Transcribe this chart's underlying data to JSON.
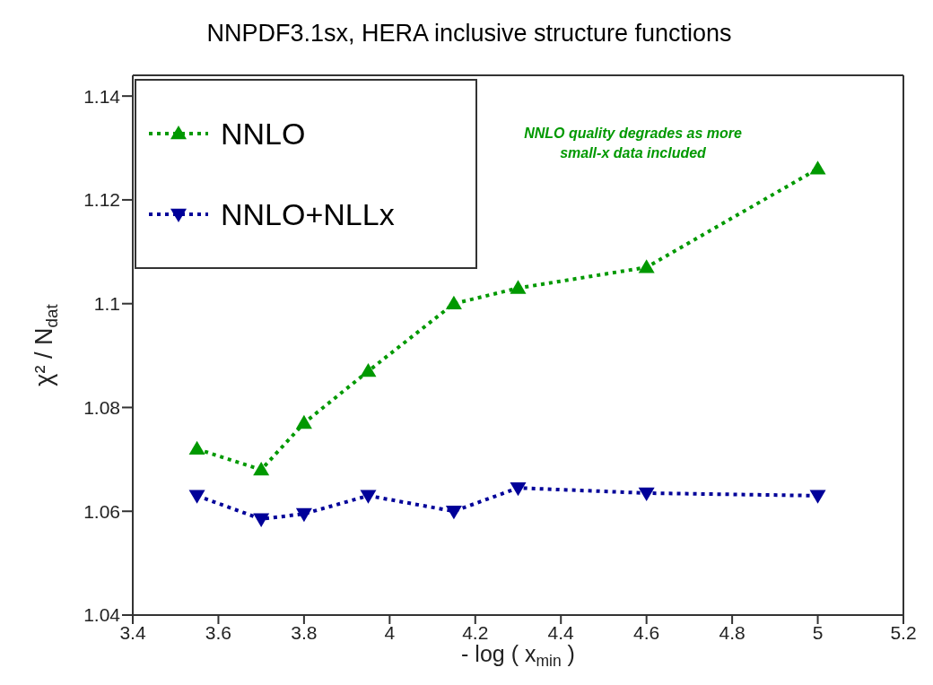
{
  "chart_data": {
    "type": "line",
    "title": "NNPDF3.1sx, HERA inclusive structure functions",
    "xlabel": "- log ( x$_{min}$ )",
    "ylabel": "χ² / N$_{dat}$",
    "x": [
      3.55,
      3.7,
      3.8,
      3.95,
      4.15,
      4.3,
      4.6,
      5.0
    ],
    "series": [
      {
        "name": "NNLO",
        "color": "#009900",
        "marker": "triangle",
        "values": [
          1.072,
          1.068,
          1.077,
          1.087,
          1.1,
          1.103,
          1.107,
          1.126
        ]
      },
      {
        "name": "NNLO+NLLx",
        "color": "#000099",
        "marker": "triangle-down",
        "values": [
          1.063,
          1.0585,
          1.0595,
          1.063,
          1.06,
          1.0645,
          1.0635,
          1.063
        ]
      }
    ],
    "xlim": [
      3.4,
      5.2
    ],
    "xticks": [
      3.4,
      3.6,
      3.8,
      4,
      4.2,
      4.4,
      4.6,
      4.8,
      5,
      5.2
    ],
    "ylim": [
      1.04,
      1.144
    ],
    "yticks": [
      1.04,
      1.06,
      1.08,
      1.1,
      1.12,
      1.14
    ],
    "line_style": "dotted",
    "legend": "top left",
    "grid": false,
    "annotations": [
      "NNLO quality degrades as more small-x data included"
    ]
  }
}
